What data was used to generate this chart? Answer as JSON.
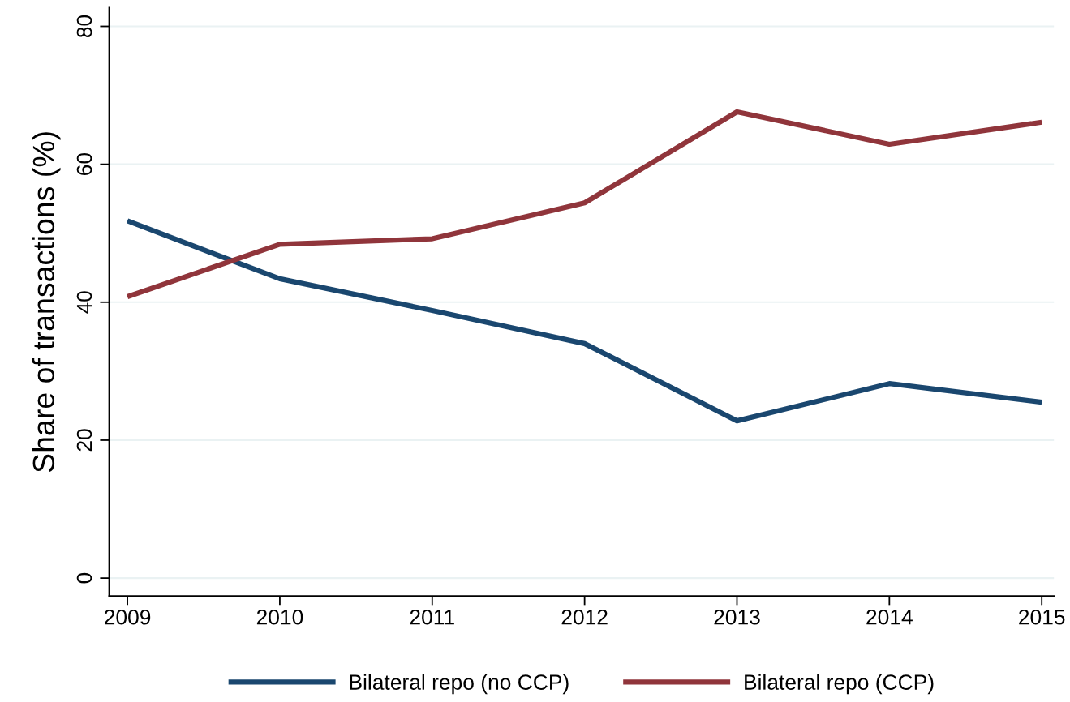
{
  "chart_data": {
    "type": "line",
    "ylabel": "Share of transactions (%)",
    "x": [
      2009,
      2010,
      2011,
      2012,
      2013,
      2014,
      2015
    ],
    "series": [
      {
        "name": "Bilateral repo (no CCP)",
        "color": "#1a476f",
        "values": [
          51.8,
          43.4,
          38.8,
          34.0,
          22.8,
          28.2,
          25.5
        ]
      },
      {
        "name": "Bilateral repo (CCP)",
        "color": "#90353b",
        "values": [
          40.8,
          48.4,
          49.2,
          54.4,
          67.6,
          62.9,
          66.1
        ]
      }
    ],
    "xlim": [
      2008.88,
      2015.08
    ],
    "xticks": [
      2009,
      2010,
      2011,
      2012,
      2013,
      2014,
      2015
    ],
    "ylim": [
      -2.6,
      82.7
    ],
    "yticks": [
      0,
      20,
      40,
      60,
      80
    ],
    "grid": "y",
    "legend": "bottom",
    "line_style": "solid",
    "marker": "none"
  }
}
